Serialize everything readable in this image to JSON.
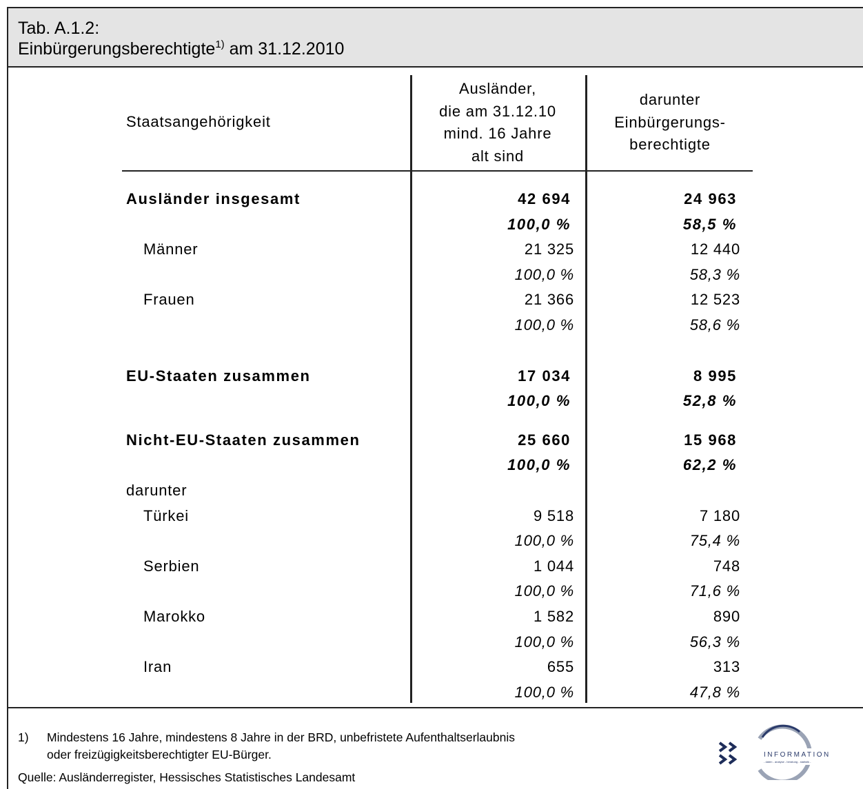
{
  "header": {
    "label": "Tab. A.1.2:",
    "title": "Einbürgerungsberechtigte",
    "footnote_mark": "1)",
    "date": " am 31.12.2010"
  },
  "table": {
    "columns": [
      "Staatsangehörigkeit",
      [
        "Ausländer,",
        "die am 31.12.10",
        "mind. 16 Jahre",
        "alt sind"
      ],
      [
        "darunter",
        "Einbürgerungs-",
        "berechtigte"
      ]
    ],
    "groups": [
      {
        "label": "Ausländer insgesamt",
        "values": [
          "42 694",
          "24 963"
        ],
        "percents": [
          "100,0 %",
          "58,5 %"
        ],
        "children": [
          {
            "label": "Männer",
            "values": [
              "21 325",
              "12 440"
            ],
            "percents": [
              "100,0 %",
              "58,3 %"
            ]
          },
          {
            "label": "Frauen",
            "values": [
              "21 366",
              "12 523"
            ],
            "percents": [
              "100,0 %",
              "58,6 %"
            ]
          }
        ]
      },
      {
        "label": "EU-Staaten zusammen",
        "values": [
          "17 034",
          "8 995"
        ],
        "percents": [
          "100,0 %",
          "52,8 %"
        ],
        "children": []
      },
      {
        "label": "Nicht-EU-Staaten zusammen",
        "values": [
          "25 660",
          "15 968"
        ],
        "percents": [
          "100,0 %",
          "62,2 %"
        ],
        "children": []
      },
      {
        "label": "darunter",
        "children": [
          {
            "label": "Türkei",
            "values": [
              "9 518",
              "7 180"
            ],
            "percents": [
              "100,0 %",
              "75,4 %"
            ]
          },
          {
            "label": "Serbien",
            "values": [
              "1 044",
              "748"
            ],
            "percents": [
              "100,0 %",
              "71,6 %"
            ]
          },
          {
            "label": "Marokko",
            "values": [
              "1 582",
              "890"
            ],
            "percents": [
              "100,0 %",
              "56,3 %"
            ]
          },
          {
            "label": "Iran",
            "values": [
              "655",
              "313"
            ],
            "percents": [
              "100,0 %",
              "47,8 %"
            ]
          }
        ]
      }
    ]
  },
  "footer": {
    "note_mark": "1)",
    "note": [
      "Mindestens 16 Jahre, mindestens 8 Jahre in der BRD, unbefristete Aufenthaltserlaubnis",
      "oder freizügigkeitsberechtigter EU-Bürger."
    ],
    "source": "Quelle: Ausländerregister, Hessisches Statistisches Landesamt",
    "logo": "INFORMATION",
    "logo_sub": "- daten - analyse - beratung - statistik -"
  }
}
